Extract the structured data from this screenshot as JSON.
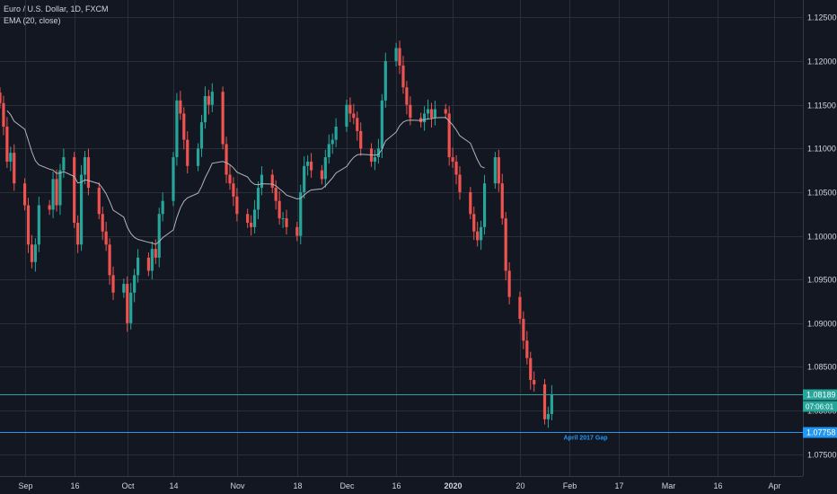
{
  "legend": {
    "symbol_line": "Euro / U.S. Dollar, 1D, FXCM",
    "indicator_line": "EMA (20, close)"
  },
  "colors": {
    "background": "#131722",
    "grid": "#2a2e39",
    "up": "#26a69a",
    "down": "#ef5350",
    "ema": "#b2b5be",
    "price_line": "#26a69a",
    "gap_line": "#2196f3",
    "axis_text": "#d1d4dc"
  },
  "chart_data": {
    "type": "candlestick",
    "symbol": "Euro / U.S. Dollar",
    "interval": "1D",
    "source": "FXCM",
    "ylim": [
      1.0725,
      1.127
    ],
    "y_ticks": [
      "1.12500",
      "1.12000",
      "1.11500",
      "1.11000",
      "1.10500",
      "1.10000",
      "1.09500",
      "1.09000",
      "1.08500",
      "1.08000",
      "1.07500"
    ],
    "x_ticks": [
      {
        "label": "Sep",
        "date": "2019-09-02"
      },
      {
        "label": "16",
        "date": "2019-09-16"
      },
      {
        "label": "Oct",
        "date": "2019-10-01"
      },
      {
        "label": "14",
        "date": "2019-10-14"
      },
      {
        "label": "Nov",
        "date": "2019-11-01"
      },
      {
        "label": "18",
        "date": "2019-11-18"
      },
      {
        "label": "Dec",
        "date": "2019-12-02"
      },
      {
        "label": "16",
        "date": "2019-12-16"
      },
      {
        "label": "2020",
        "date": "2020-01-01"
      },
      {
        "label": "20",
        "date": "2020-01-20"
      },
      {
        "label": "Feb",
        "date": "2020-02-03"
      },
      {
        "label": "17",
        "date": "2020-02-17"
      },
      {
        "label": "Mar",
        "date": "2020-03-02"
      },
      {
        "label": "16",
        "date": "2020-03-16"
      },
      {
        "label": "Apr",
        "date": "2020-04-01"
      }
    ],
    "first_date": "2019-08-26",
    "last_date": "2020-04-09",
    "closes": [
      1.1152,
      1.1125,
      1.1085,
      1.1095,
      1.106,
      1.1035,
      1.099,
      1.097,
      1.099,
      1.1035,
      1.103,
      1.1065,
      1.1035,
      1.1075,
      1.109,
      1.1015,
      1.099,
      1.107,
      1.109,
      1.1055,
      1.1025,
      1.1005,
      1.099,
      1.0955,
      1.0935,
      1.0945,
      1.09,
      1.0935,
      1.0955,
      1.0975,
      1.096,
      1.0985,
      1.0975,
      1.1025,
      1.104,
      1.109,
      1.1155,
      1.114,
      1.111,
      1.108,
      1.11,
      1.113,
      1.116,
      1.115,
      1.1165,
      1.1105,
      1.107,
      1.106,
      1.1045,
      1.1025,
      1.1015,
      1.101,
      1.103,
      1.1055,
      1.107,
      1.1055,
      1.104,
      1.102,
      1.102,
      1.101,
      1.1,
      1.105,
      1.108,
      1.1085,
      1.1075,
      1.1065,
      1.109,
      1.1105,
      1.111,
      1.1125,
      1.115,
      1.114,
      1.1135,
      1.112,
      1.11,
      1.1085,
      1.109,
      1.11,
      1.1155,
      1.12,
      1.1215,
      1.1195,
      1.117,
      1.115,
      1.1135,
      1.113,
      1.114,
      1.1145,
      1.1135,
      1.1145,
      1.114,
      1.109,
      1.1085,
      1.107,
      1.105,
      1.1025,
      1.1005,
      1.0995,
      1.101,
      1.106,
      1.109,
      1.106,
      1.102,
      1.096,
      1.093,
      1.0905,
      1.088,
      1.086,
      1.0835,
      1.083,
      1.079,
      1.0796,
      1.0818
    ],
    "ema_period": 20,
    "price_label": {
      "value": "1.08189",
      "countdown": "07:06:01",
      "level": 1.08189
    },
    "gap_line": {
      "value": "1.07758",
      "label": "April 2017 Gap",
      "level": 1.07758
    },
    "grid": true,
    "legend_position": "top-left"
  }
}
